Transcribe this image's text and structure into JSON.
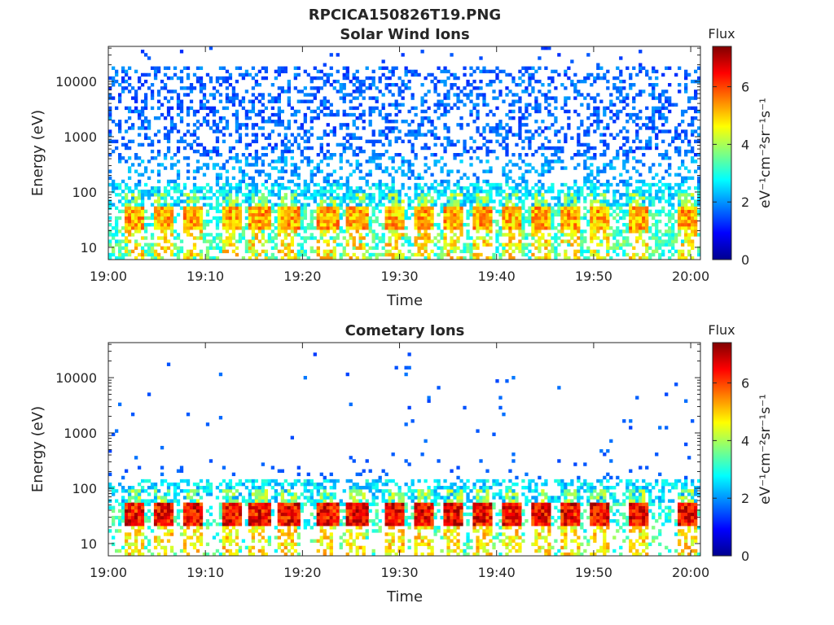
{
  "figure_title": "RPCICA150826T19.PNG",
  "chart_data": [
    {
      "type": "heatmap",
      "title": "Solar Wind Ions",
      "xlabel": "Time",
      "ylabel": "Energy (eV)",
      "x_ticks": [
        "19:00",
        "19:10",
        "19:20",
        "19:30",
        "19:40",
        "19:50",
        "20:00"
      ],
      "x_range": [
        "19:00",
        "20:01"
      ],
      "y_scale": "log",
      "y_ticks": [
        "10",
        "100",
        "1000",
        "10000"
      ],
      "ylim": [
        6,
        43000
      ],
      "colorbar": {
        "title": "Flux",
        "label": "eV⁻¹cm⁻²sr⁻¹s⁻¹",
        "ticks": [
          "0",
          "2",
          "4",
          "6"
        ],
        "range": [
          0,
          7.4
        ],
        "colormap": "jet"
      },
      "features": [
        {
          "description": "sparse low-flux counts",
          "energy_range_eV": [
            100,
            16000
          ],
          "flux_range": [
            1.5,
            2.5
          ]
        },
        {
          "description": "medium flux band",
          "energy_range_eV": [
            40,
            130
          ],
          "flux_range": [
            2.5,
            3.5
          ]
        },
        {
          "description": "periodic bursts",
          "energy_eV": [
            20,
            45
          ],
          "flux_peak": 5.5,
          "burst_times": [
            "19:02",
            "19:05",
            "19:08",
            "19:12",
            "19:15",
            "19:18",
            "19:22",
            "19:25",
            "19:29",
            "19:32",
            "19:35",
            "19:38",
            "19:41",
            "19:44",
            "19:47",
            "19:50",
            "19:54",
            "19:59"
          ]
        },
        {
          "description": "low energy background",
          "energy_range_eV": [
            6,
            20
          ],
          "flux_range": [
            3,
            4
          ]
        }
      ]
    },
    {
      "type": "heatmap",
      "title": "Cometary Ions",
      "xlabel": "Time",
      "ylabel": "Energy (eV)",
      "x_ticks": [
        "19:00",
        "19:10",
        "19:20",
        "19:30",
        "19:40",
        "19:50",
        "20:00"
      ],
      "x_range": [
        "19:00",
        "20:01"
      ],
      "y_scale": "log",
      "y_ticks": [
        "10",
        "100",
        "1000",
        "10000"
      ],
      "ylim": [
        6,
        43000
      ],
      "colorbar": {
        "title": "Flux",
        "label": "eV⁻¹cm⁻²sr⁻¹s⁻¹",
        "ticks": [
          "0",
          "2",
          "4",
          "6"
        ],
        "range": [
          0,
          7.4
        ],
        "colormap": "jet"
      },
      "features": [
        {
          "description": "scattered high energy counts",
          "energy_range_eV": [
            200,
            17000
          ],
          "flux_range": [
            1.5,
            2.2
          ]
        },
        {
          "description": "medium flux band",
          "energy_range_eV": [
            60,
            130
          ],
          "flux_range": [
            2.2,
            3.0
          ]
        },
        {
          "description": "periodic bursts",
          "energy_eV": [
            20,
            45
          ],
          "flux_peak": 7.0,
          "burst_times": [
            "19:02",
            "19:05",
            "19:08",
            "19:12",
            "19:15",
            "19:18",
            "19:22",
            "19:25",
            "19:29",
            "19:32",
            "19:35",
            "19:38",
            "19:41",
            "19:44",
            "19:47",
            "19:50",
            "19:54",
            "19:59"
          ]
        },
        {
          "description": "low energy background",
          "energy_range_eV": [
            6,
            20
          ],
          "flux_range": [
            3,
            4
          ]
        }
      ]
    }
  ]
}
